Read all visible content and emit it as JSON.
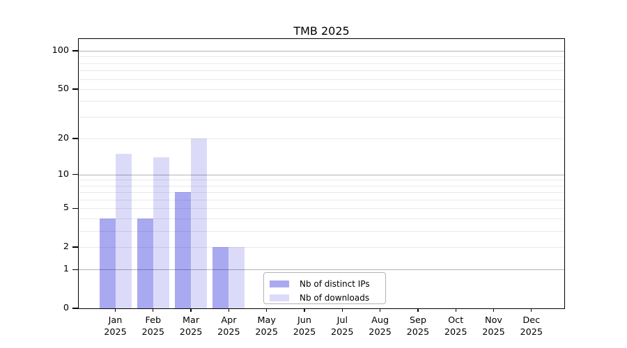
{
  "chart_data": {
    "type": "bar",
    "title": "TMB 2025",
    "categories": [
      "Jan 2025",
      "Feb 2025",
      "Mar 2025",
      "Apr 2025",
      "May 2025",
      "Jun 2025",
      "Jul 2025",
      "Aug 2025",
      "Sep 2025",
      "Oct 2025",
      "Nov 2025",
      "Dec 2025"
    ],
    "series": [
      {
        "name": "Nb of distinct IPs",
        "color": "#a9a9f2",
        "values": [
          4,
          4,
          7,
          2,
          0,
          0,
          0,
          0,
          0,
          0,
          0,
          0
        ]
      },
      {
        "name": "Nb of downloads",
        "color": "#dbdbf9",
        "values": [
          15,
          14,
          20,
          2,
          0,
          0,
          0,
          0,
          0,
          0,
          0,
          0
        ]
      }
    ],
    "y_axis": {
      "scale": "log1p",
      "tick_values": [
        0,
        1,
        2,
        5,
        10,
        20,
        50,
        100
      ],
      "tick_labels": [
        "0",
        "1",
        "2",
        "5",
        "10",
        "20",
        "50",
        "100"
      ],
      "major_grid_values": [
        1,
        10,
        100
      ],
      "minor_grid_values": [
        2,
        3,
        4,
        5,
        6,
        7,
        8,
        9,
        20,
        30,
        40,
        50,
        60,
        70,
        80,
        90
      ],
      "ylim": [
        0,
        124
      ]
    },
    "grid": true,
    "legend_position": "bottom-center"
  },
  "colors": {
    "bar_distinct_ips": "#a9a9f2",
    "bar_downloads": "#dbdbf9",
    "major_grid": "rgba(0,0,0,0.30)",
    "minor_grid": "rgba(0,0,0,0.085)",
    "axis_spine": "#000000",
    "legend_border": "#b3b3b3",
    "background": "#ffffff"
  }
}
